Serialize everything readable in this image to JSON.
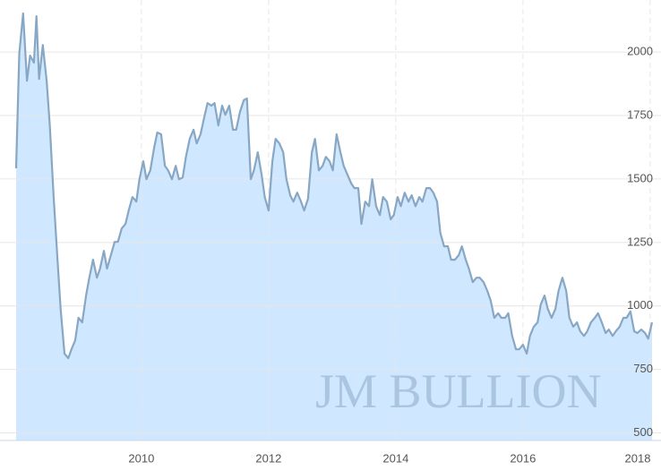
{
  "chart_data": {
    "type": "area",
    "watermark": "JM BULLION",
    "x": [
      2008.03,
      2008.08,
      2008.14,
      2008.2,
      2008.25,
      2008.31,
      2008.35,
      2008.39,
      2008.45,
      2008.51,
      2008.56,
      2008.62,
      2008.68,
      2008.73,
      2008.79,
      2008.85,
      2008.9,
      2008.96,
      2009.01,
      2009.07,
      2009.13,
      2009.18,
      2009.24,
      2009.3,
      2009.35,
      2009.41,
      2009.46,
      2009.52,
      2009.58,
      2009.63,
      2009.69,
      2009.75,
      2009.8,
      2009.86,
      2009.92,
      2009.97,
      2010.03,
      2010.08,
      2010.14,
      2010.2,
      2010.25,
      2010.31,
      2010.37,
      2010.42,
      2010.48,
      2010.54,
      2010.59,
      2010.65,
      2010.7,
      2010.76,
      2010.82,
      2010.87,
      2010.93,
      2010.99,
      2011.04,
      2011.1,
      2011.15,
      2011.21,
      2011.27,
      2011.32,
      2011.38,
      2011.44,
      2011.49,
      2011.55,
      2011.61,
      2011.66,
      2011.72,
      2011.77,
      2011.83,
      2011.89,
      2011.94,
      2012.0,
      2012.06,
      2012.11,
      2012.17,
      2012.23,
      2012.28,
      2012.34,
      2012.39,
      2012.45,
      2012.51,
      2012.56,
      2012.62,
      2012.68,
      2012.73,
      2012.79,
      2012.85,
      2012.9,
      2012.96,
      2013.01,
      2013.07,
      2013.13,
      2013.18,
      2013.24,
      2013.3,
      2013.35,
      2013.41,
      2013.46,
      2013.52,
      2013.58,
      2013.63,
      2013.69,
      2013.75,
      2013.8,
      2013.86,
      2013.92,
      2013.97,
      2014.03,
      2014.08,
      2014.14,
      2014.2,
      2014.25,
      2014.31,
      2014.37,
      2014.42,
      2014.48,
      2014.54,
      2014.59,
      2014.65,
      2014.7,
      2014.76,
      2014.82,
      2014.87,
      2014.93,
      2014.99,
      2015.04,
      2015.1,
      2015.15,
      2015.21,
      2015.27,
      2015.32,
      2015.38,
      2015.44,
      2015.49,
      2015.55,
      2015.61,
      2015.66,
      2015.72,
      2015.77,
      2015.83,
      2015.89,
      2015.94,
      2016.0,
      2016.06,
      2016.11,
      2016.17,
      2016.23,
      2016.28,
      2016.34,
      2016.39,
      2016.45,
      2016.51,
      2016.56,
      2016.62,
      2016.68,
      2016.73,
      2016.79,
      2016.85,
      2016.9,
      2016.96,
      2017.01,
      2017.07,
      2017.13,
      2017.18,
      2017.24,
      2017.3,
      2017.35,
      2017.41,
      2017.46,
      2017.52,
      2017.58,
      2017.63,
      2017.69,
      2017.75,
      2017.8,
      2017.86,
      2017.92,
      2017.97,
      2018.03
    ],
    "series": [
      {
        "color": "#87a7c4",
        "fill": "#cfe7ff",
        "values": [
          1542,
          1993,
          2152,
          1887,
          1986,
          1958,
          2141,
          1894,
          2028,
          1887,
          1711,
          1429,
          1182,
          988,
          812,
          794,
          829,
          865,
          953,
          935,
          1041,
          1111,
          1182,
          1111,
          1147,
          1217,
          1147,
          1200,
          1252,
          1252,
          1305,
          1323,
          1376,
          1429,
          1411,
          1499,
          1570,
          1499,
          1534,
          1623,
          1683,
          1676,
          1552,
          1534,
          1499,
          1552,
          1499,
          1506,
          1587,
          1658,
          1694,
          1640,
          1676,
          1746,
          1799,
          1789,
          1799,
          1711,
          1789,
          1753,
          1789,
          1694,
          1694,
          1764,
          1810,
          1817,
          1499,
          1534,
          1605,
          1517,
          1429,
          1376,
          1570,
          1658,
          1640,
          1605,
          1499,
          1436,
          1411,
          1446,
          1411,
          1376,
          1422,
          1605,
          1658,
          1534,
          1552,
          1587,
          1570,
          1534,
          1676,
          1605,
          1552,
          1517,
          1482,
          1464,
          1464,
          1323,
          1411,
          1393,
          1499,
          1393,
          1358,
          1429,
          1411,
          1341,
          1358,
          1429,
          1393,
          1446,
          1411,
          1436,
          1393,
          1429,
          1411,
          1464,
          1464,
          1446,
          1411,
          1288,
          1235,
          1235,
          1182,
          1182,
          1200,
          1235,
          1182,
          1147,
          1094,
          1111,
          1111,
          1094,
          1059,
          1023,
          953,
          971,
          953,
          953,
          971,
          882,
          829,
          829,
          847,
          812,
          882,
          918,
          935,
          1006,
          1041,
          988,
          953,
          988,
          1059,
          1111,
          1059,
          953,
          918,
          935,
          900,
          882,
          900,
          935,
          953,
          971,
          935,
          893,
          907,
          882,
          900,
          918,
          953,
          953,
          978,
          900,
          893,
          907,
          893,
          871,
          935
        ]
      }
    ],
    "xlim": [
      2008.03,
      2018.03
    ],
    "xticks": [
      2010,
      2012,
      2014,
      2016,
      2018
    ],
    "ylim": [
      470,
      2205
    ],
    "yticks": [
      500,
      750,
      1000,
      1250,
      1500,
      1750,
      2000
    ],
    "grid": true
  }
}
